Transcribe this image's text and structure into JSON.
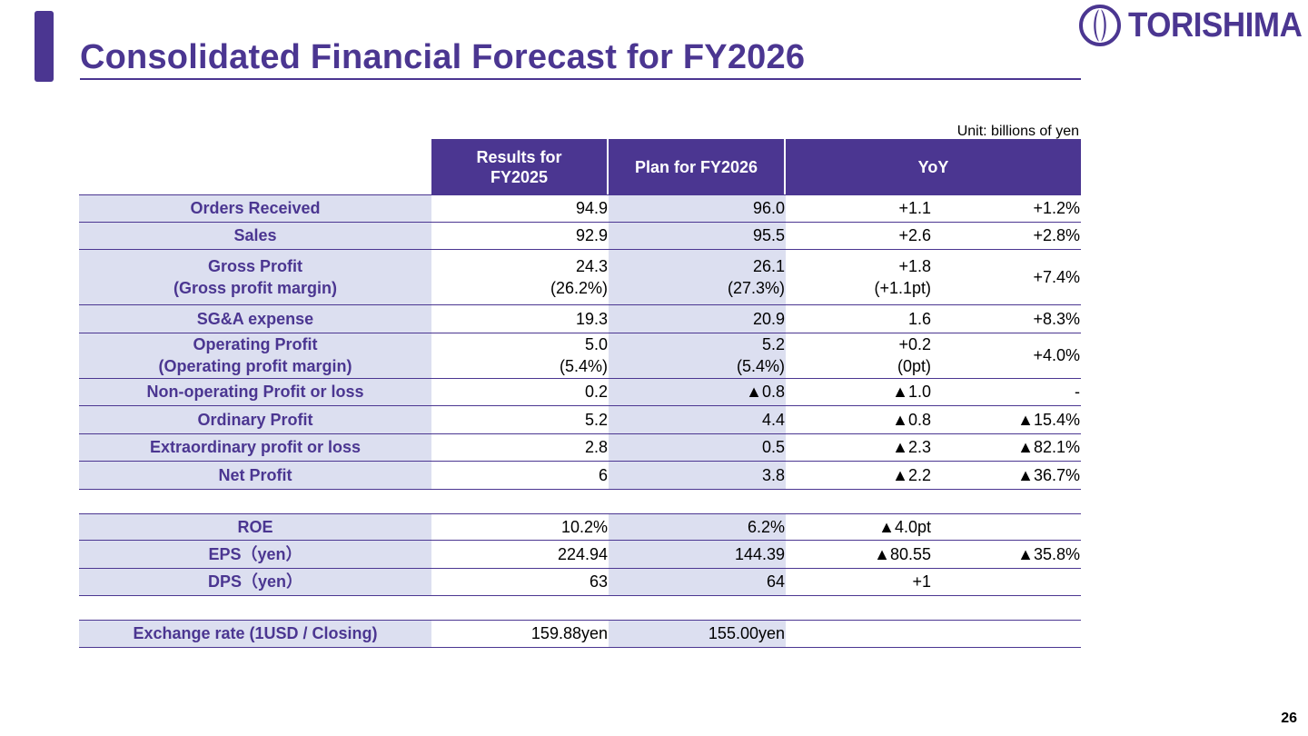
{
  "slide": {
    "title": "Consolidated Financial Forecast for FY2026",
    "unit_note": "Unit: billions of yen",
    "page_number": "26",
    "accent_color": "#4b3691"
  },
  "logo": {
    "text": "TORISHIMA",
    "icon": "torishima-emblem-icon"
  },
  "table": {
    "headers": {
      "col1": "Results for\nFY2025",
      "col2": "Plan for FY2026",
      "col3": "YoY"
    },
    "rows": [
      {
        "label": [
          "Orders Received"
        ],
        "fy2025": [
          "94.9"
        ],
        "fy2026": [
          "96.0"
        ],
        "yoy_diff": [
          "+1.1"
        ],
        "yoy_pct": "+1.2%"
      },
      {
        "label": [
          "Sales"
        ],
        "fy2025": [
          "92.9"
        ],
        "fy2026": [
          "95.5"
        ],
        "yoy_diff": [
          "+2.6"
        ],
        "yoy_pct": "+2.8%"
      },
      {
        "label": [
          "Gross Profit",
          "(Gross profit margin)"
        ],
        "fy2025": [
          "24.3",
          "(26.2%)"
        ],
        "fy2026": [
          "26.1",
          "(27.3%)"
        ],
        "yoy_diff": [
          "+1.8",
          "(+1.1pt)"
        ],
        "yoy_pct": "+7.4%"
      },
      {
        "label": [
          "SG&A expense"
        ],
        "fy2025": [
          "19.3"
        ],
        "fy2026": [
          "20.9"
        ],
        "yoy_diff": [
          "1.6"
        ],
        "yoy_pct": "+8.3%"
      },
      {
        "label": [
          "Operating Profit",
          "(Operating profit margin)"
        ],
        "fy2025": [
          "5.0",
          "(5.4%)"
        ],
        "fy2026": [
          "5.2",
          "(5.4%)"
        ],
        "yoy_diff": [
          "+0.2",
          "(0pt)"
        ],
        "yoy_pct": "+4.0%"
      },
      {
        "label": [
          "Non-operating Profit or loss"
        ],
        "fy2025": [
          "0.2"
        ],
        "fy2026": [
          "▲0.8"
        ],
        "yoy_diff": [
          "▲1.0"
        ],
        "yoy_pct": "-"
      },
      {
        "label": [
          "Ordinary Profit"
        ],
        "fy2025": [
          "5.2"
        ],
        "fy2026": [
          "4.4"
        ],
        "yoy_diff": [
          "▲0.8"
        ],
        "yoy_pct": "▲15.4%"
      },
      {
        "label": [
          "Extraordinary profit or loss"
        ],
        "fy2025": [
          "2.8"
        ],
        "fy2026": [
          "0.5"
        ],
        "yoy_diff": [
          "▲2.3"
        ],
        "yoy_pct": "▲82.1%"
      },
      {
        "label": [
          "Net Profit"
        ],
        "fy2025": [
          "6"
        ],
        "fy2026": [
          "3.8"
        ],
        "yoy_diff": [
          "▲2.2"
        ],
        "yoy_pct": "▲36.7%"
      }
    ],
    "rows2": [
      {
        "label": [
          "ROE"
        ],
        "fy2025": [
          "10.2%"
        ],
        "fy2026": [
          "6.2%"
        ],
        "yoy_diff": [
          "▲4.0pt"
        ],
        "yoy_pct": ""
      },
      {
        "label": [
          "EPS（yen）"
        ],
        "fy2025": [
          "224.94"
        ],
        "fy2026": [
          "144.39"
        ],
        "yoy_diff": [
          "▲80.55"
        ],
        "yoy_pct": "▲35.8%"
      },
      {
        "label": [
          "DPS（yen）"
        ],
        "fy2025": [
          "63"
        ],
        "fy2026": [
          "64"
        ],
        "yoy_diff": [
          "+1"
        ],
        "yoy_pct": ""
      }
    ],
    "rows3": [
      {
        "label": [
          "Exchange rate (1USD / Closing)"
        ],
        "fy2025": [
          "159.88yen"
        ],
        "fy2026": [
          "155.00yen"
        ],
        "yoy_diff": [
          ""
        ],
        "yoy_pct": ""
      }
    ]
  }
}
